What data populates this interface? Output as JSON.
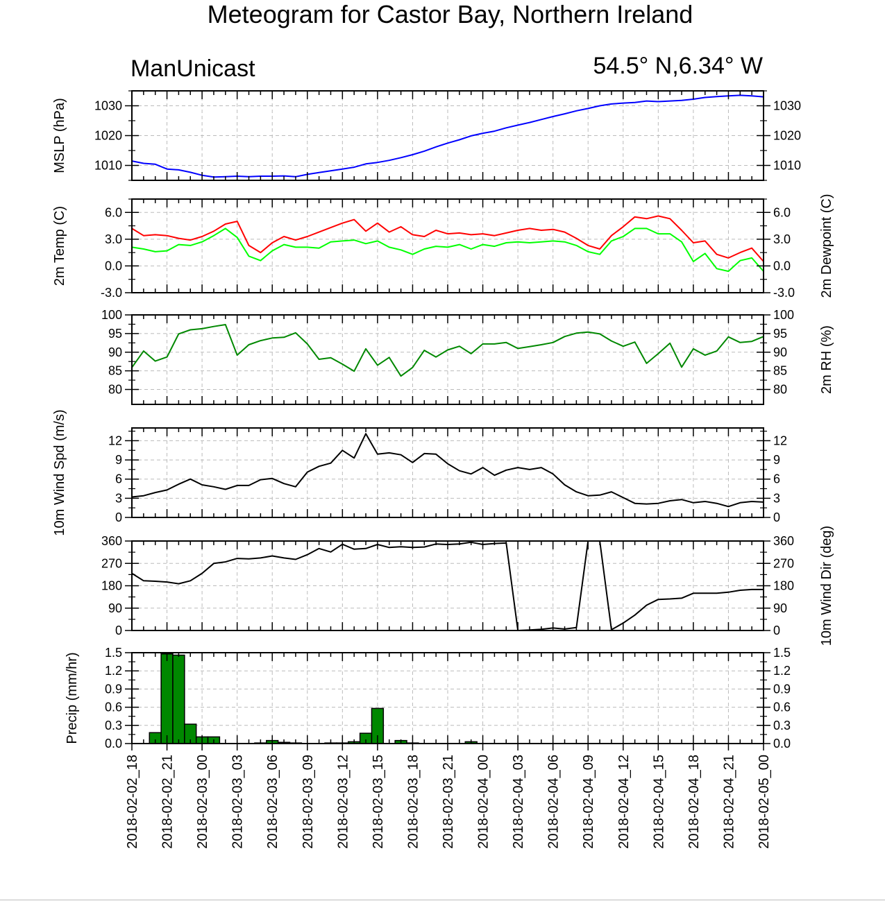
{
  "title": "Meteogram for Castor Bay, Northern Ireland",
  "left_label": "ManUnicast",
  "right_label": "54.5° N,6.34° W",
  "time_labels": [
    "2018-02-02_18",
    "2018-02-02_21",
    "2018-02-03_00",
    "2018-02-03_03",
    "2018-02-03_06",
    "2018-02-03_09",
    "2018-02-03_12",
    "2018-02-03_15",
    "2018-02-03_18",
    "2018-02-03_21",
    "2018-02-04_00",
    "2018-02-04_03",
    "2018-02-04_06",
    "2018-02-04_09",
    "2018-02-04_12",
    "2018-02-04_15",
    "2018-02-04_18",
    "2018-02-04_21",
    "2018-02-05_00"
  ],
  "chart_data": [
    {
      "id": "mslp",
      "type": "line",
      "ylabel": "MSLP (hPa)",
      "ylabel_right": "",
      "ylim": [
        1005,
        1035
      ],
      "ticks": [
        1010,
        1020,
        1030
      ],
      "tick_labels": [
        "1010",
        "1020",
        "1030"
      ],
      "minor_ticks": [
        1005,
        1015,
        1025,
        1035
      ],
      "right_tick_labels": true,
      "grid": true,
      "x_hours": [
        0,
        54
      ],
      "series": [
        {
          "color": "#0000ff",
          "x": [
            0,
            1,
            2,
            3,
            4,
            5,
            6,
            7,
            8,
            9,
            10,
            11,
            12,
            13,
            14,
            15,
            16,
            17,
            18,
            19,
            20,
            21,
            22,
            23,
            24,
            25,
            26,
            27,
            28,
            29,
            30,
            31,
            32,
            33,
            34,
            35,
            36,
            37,
            38,
            39,
            40,
            41,
            42,
            43,
            44,
            45,
            46,
            47,
            48,
            49,
            50,
            51,
            52,
            53,
            54
          ],
          "values": [
            1011.5,
            1010.7,
            1010.4,
            1008.8,
            1008.5,
            1007.7,
            1006.7,
            1006.1,
            1006.2,
            1006.4,
            1006.2,
            1006.4,
            1006.4,
            1006.5,
            1006.2,
            1007.0,
            1007.6,
            1008.2,
            1008.8,
            1009.4,
            1010.5,
            1011.0,
            1011.7,
            1012.6,
            1013.6,
            1014.8,
            1016.2,
            1017.5,
            1018.6,
            1019.9,
            1020.8,
            1021.5,
            1022.6,
            1023.5,
            1024.4,
            1025.4,
            1026.4,
            1027.3,
            1028.3,
            1029.1,
            1030.0,
            1030.6,
            1030.9,
            1031.1,
            1031.6,
            1031.4,
            1031.6,
            1031.8,
            1032.2,
            1032.8,
            1033.1,
            1033.3,
            1033.5,
            1033.3,
            1033.0
          ]
        }
      ]
    },
    {
      "id": "temp",
      "type": "line",
      "ylabel": "2m Temp (C)",
      "ylabel_right": "2m Dewpoint (C)",
      "ylim": [
        -3,
        7.5
      ],
      "ticks": [
        -3,
        0,
        3,
        6
      ],
      "tick_labels": [
        "-3.0",
        "0.0",
        "3.0",
        "6.0"
      ],
      "minor_ticks": [
        -1.5,
        1.5,
        4.5,
        7.5
      ],
      "right_tick_labels": true,
      "grid": true,
      "x_hours": [
        0,
        54
      ],
      "series": [
        {
          "color": "#ff0000",
          "x": [
            0,
            1,
            2,
            3,
            4,
            5,
            6,
            7,
            8,
            9,
            10,
            11,
            12,
            13,
            14,
            15,
            16,
            17,
            18,
            19,
            20,
            21,
            22,
            23,
            24,
            25,
            26,
            27,
            28,
            29,
            30,
            31,
            32,
            33,
            34,
            35,
            36,
            37,
            38,
            39,
            40,
            41,
            42,
            43,
            44,
            45,
            46,
            47,
            48,
            49,
            50,
            51,
            52,
            53,
            54
          ],
          "values": [
            4.2,
            3.4,
            3.5,
            3.4,
            3.1,
            2.9,
            3.3,
            3.9,
            4.7,
            5.0,
            2.3,
            1.5,
            2.6,
            3.3,
            2.9,
            3.3,
            3.8,
            4.3,
            4.8,
            5.2,
            3.9,
            4.8,
            3.8,
            4.4,
            3.5,
            3.3,
            4.0,
            3.6,
            3.7,
            3.5,
            3.6,
            3.4,
            3.7,
            4.0,
            4.2,
            4.0,
            4.1,
            3.8,
            3.1,
            2.3,
            1.9,
            3.4,
            4.4,
            5.5,
            5.3,
            5.6,
            5.3,
            4.0,
            2.6,
            2.8,
            1.3,
            0.9,
            1.5,
            2.0,
            0.5
          ]
        },
        {
          "color": "#00ff00",
          "x": [
            0,
            1,
            2,
            3,
            4,
            5,
            6,
            7,
            8,
            9,
            10,
            11,
            12,
            13,
            14,
            15,
            16,
            17,
            18,
            19,
            20,
            21,
            22,
            23,
            24,
            25,
            26,
            27,
            28,
            29,
            30,
            31,
            32,
            33,
            34,
            35,
            36,
            37,
            38,
            39,
            40,
            41,
            42,
            43,
            44,
            45,
            46,
            47,
            48,
            49,
            50,
            51,
            52,
            53,
            54
          ],
          "values": [
            2.1,
            1.9,
            1.6,
            1.7,
            2.4,
            2.3,
            2.7,
            3.4,
            4.2,
            3.2,
            1.1,
            0.6,
            1.7,
            2.4,
            2.1,
            2.1,
            2.0,
            2.7,
            2.8,
            2.9,
            2.5,
            2.8,
            2.1,
            1.8,
            1.3,
            1.9,
            2.2,
            2.1,
            2.4,
            1.9,
            2.4,
            2.2,
            2.6,
            2.7,
            2.6,
            2.7,
            2.8,
            2.7,
            2.3,
            1.6,
            1.3,
            2.8,
            3.3,
            4.2,
            4.2,
            3.6,
            3.6,
            2.7,
            0.5,
            1.4,
            -0.3,
            -0.6,
            0.6,
            0.9,
            -0.6
          ]
        }
      ]
    },
    {
      "id": "rh",
      "type": "line",
      "ylabel": "",
      "ylabel_right": "2m RH (%)",
      "ylim": [
        76,
        100
      ],
      "ticks": [
        80,
        85,
        90,
        95,
        100
      ],
      "tick_labels": [
        "80",
        "85",
        "90",
        "95",
        "100"
      ],
      "minor_ticks": [
        82.5,
        87.5,
        92.5,
        97.5
      ],
      "right_tick_labels": true,
      "grid": true,
      "x_hours": [
        0,
        54
      ],
      "series": [
        {
          "color": "#008800",
          "x": [
            0,
            1,
            2,
            3,
            4,
            5,
            6,
            7,
            8,
            9,
            10,
            11,
            12,
            13,
            14,
            15,
            16,
            17,
            18,
            19,
            20,
            21,
            22,
            23,
            24,
            25,
            26,
            27,
            28,
            29,
            30,
            31,
            32,
            33,
            34,
            35,
            36,
            37,
            38,
            39,
            40,
            41,
            42,
            43,
            44,
            45,
            46,
            47,
            48,
            49,
            50,
            51,
            52,
            53,
            54
          ],
          "values": [
            85.9,
            90.3,
            87.6,
            88.7,
            94.9,
            96.0,
            96.3,
            96.9,
            97.4,
            89.2,
            92.0,
            93.1,
            93.8,
            94.0,
            95.2,
            92.2,
            88.1,
            88.5,
            86.8,
            84.9,
            90.9,
            86.5,
            88.6,
            83.6,
            85.9,
            90.5,
            88.7,
            90.6,
            91.6,
            89.6,
            92.2,
            92.2,
            92.6,
            91.0,
            91.5,
            92.0,
            92.6,
            94.2,
            95.1,
            95.4,
            94.9,
            93.0,
            91.6,
            92.7,
            87.0,
            89.6,
            92.4,
            86.0,
            90.9,
            89.2,
            90.3,
            94.1,
            92.6,
            92.9,
            94.2
          ]
        }
      ]
    },
    {
      "id": "wspd",
      "type": "line",
      "ylabel": "10m Wind Spd (m/s)",
      "ylabel_right": "",
      "ylim": [
        0,
        14
      ],
      "ticks": [
        0,
        3,
        6,
        9,
        12
      ],
      "tick_labels": [
        "0",
        "3",
        "6",
        "9",
        "12"
      ],
      "minor_ticks": [
        1.5,
        4.5,
        7.5,
        10.5,
        13.5
      ],
      "right_tick_labels": true,
      "grid": true,
      "x_hours": [
        0,
        54
      ],
      "series": [
        {
          "color": "#000000",
          "x": [
            0,
            1,
            2,
            3,
            4,
            5,
            6,
            7,
            8,
            9,
            10,
            11,
            12,
            13,
            14,
            15,
            16,
            17,
            18,
            19,
            20,
            21,
            22,
            23,
            24,
            25,
            26,
            27,
            28,
            29,
            30,
            31,
            32,
            33,
            34,
            35,
            36,
            37,
            38,
            39,
            40,
            41,
            42,
            43,
            44,
            45,
            46,
            47,
            48,
            49,
            50,
            51,
            52,
            53,
            54
          ],
          "values": [
            3.2,
            3.4,
            3.9,
            4.3,
            5.2,
            6.0,
            5.1,
            4.8,
            4.4,
            5.0,
            5.0,
            5.9,
            6.1,
            5.3,
            4.8,
            7.1,
            8.0,
            8.5,
            10.5,
            9.3,
            13.1,
            9.9,
            10.1,
            9.8,
            8.6,
            10.0,
            9.9,
            8.4,
            7.3,
            6.8,
            7.8,
            6.6,
            7.4,
            7.8,
            7.5,
            7.8,
            6.8,
            5.1,
            4.0,
            3.4,
            3.5,
            4.0,
            3.1,
            2.2,
            2.1,
            2.2,
            2.6,
            2.8,
            2.3,
            2.5,
            2.2,
            1.7,
            2.3,
            2.5,
            2.4
          ]
        }
      ]
    },
    {
      "id": "wdir",
      "type": "line",
      "ylabel": "",
      "ylabel_right": "10m Wind Dir (deg)",
      "ylim": [
        0,
        360
      ],
      "ticks": [
        0,
        90,
        180,
        270,
        360
      ],
      "tick_labels": [
        "0",
        "90",
        "180",
        "270",
        "360"
      ],
      "minor_ticks": [
        45,
        135,
        225,
        315
      ],
      "right_tick_labels": true,
      "grid": true,
      "x_hours": [
        0,
        54
      ],
      "series": [
        {
          "color": "#000000",
          "x": [
            0,
            1,
            2,
            3,
            4,
            5,
            6,
            7,
            8,
            9,
            10,
            11,
            12,
            13,
            14,
            15,
            16,
            17,
            18,
            19,
            20,
            21,
            22,
            23,
            24,
            25,
            26,
            27,
            28,
            29,
            30,
            31,
            32,
            33,
            34,
            35,
            36,
            37,
            38,
            39,
            40,
            41,
            42,
            43,
            44,
            45,
            46,
            47,
            48,
            49,
            50,
            51,
            52,
            53,
            54
          ],
          "values": [
            230,
            200,
            198,
            195,
            188,
            200,
            230,
            270,
            276,
            290,
            288,
            292,
            300,
            292,
            286,
            305,
            330,
            316,
            347,
            327,
            330,
            346,
            334,
            337,
            334,
            336,
            348,
            346,
            348,
            355,
            346,
            350,
            352,
            0,
            2,
            5,
            10,
            6,
            12,
            360,
            360,
            3,
            30,
            62,
            102,
            125,
            127,
            130,
            150,
            150,
            150,
            154,
            162,
            165,
            165
          ]
        }
      ]
    },
    {
      "id": "precip",
      "type": "bar",
      "ylabel": "Precip (mm/hr)",
      "ylabel_right": "",
      "ylim": [
        0,
        1.5
      ],
      "ticks": [
        0,
        0.3,
        0.6,
        0.9,
        1.2,
        1.5
      ],
      "tick_labels": [
        "0.0",
        "0.3",
        "0.6",
        "0.9",
        "1.2",
        "1.5"
      ],
      "minor_ticks": [
        0.15,
        0.45,
        0.75,
        1.05,
        1.35
      ],
      "right_tick_labels": true,
      "grid": true,
      "x_hours": [
        0,
        54
      ],
      "bar_color": "#008800",
      "series": [
        {
          "x": [
            2,
            3,
            4,
            5,
            6,
            7,
            11,
            12,
            13,
            14,
            17,
            18,
            19,
            20,
            21,
            23,
            24,
            29
          ],
          "values": [
            0.18,
            1.48,
            1.46,
            0.32,
            0.11,
            0.11,
            0.01,
            0.05,
            0.02,
            0.01,
            0.01,
            0.01,
            0.03,
            0.17,
            0.58,
            0.05,
            0.01,
            0.03
          ]
        }
      ]
    }
  ]
}
